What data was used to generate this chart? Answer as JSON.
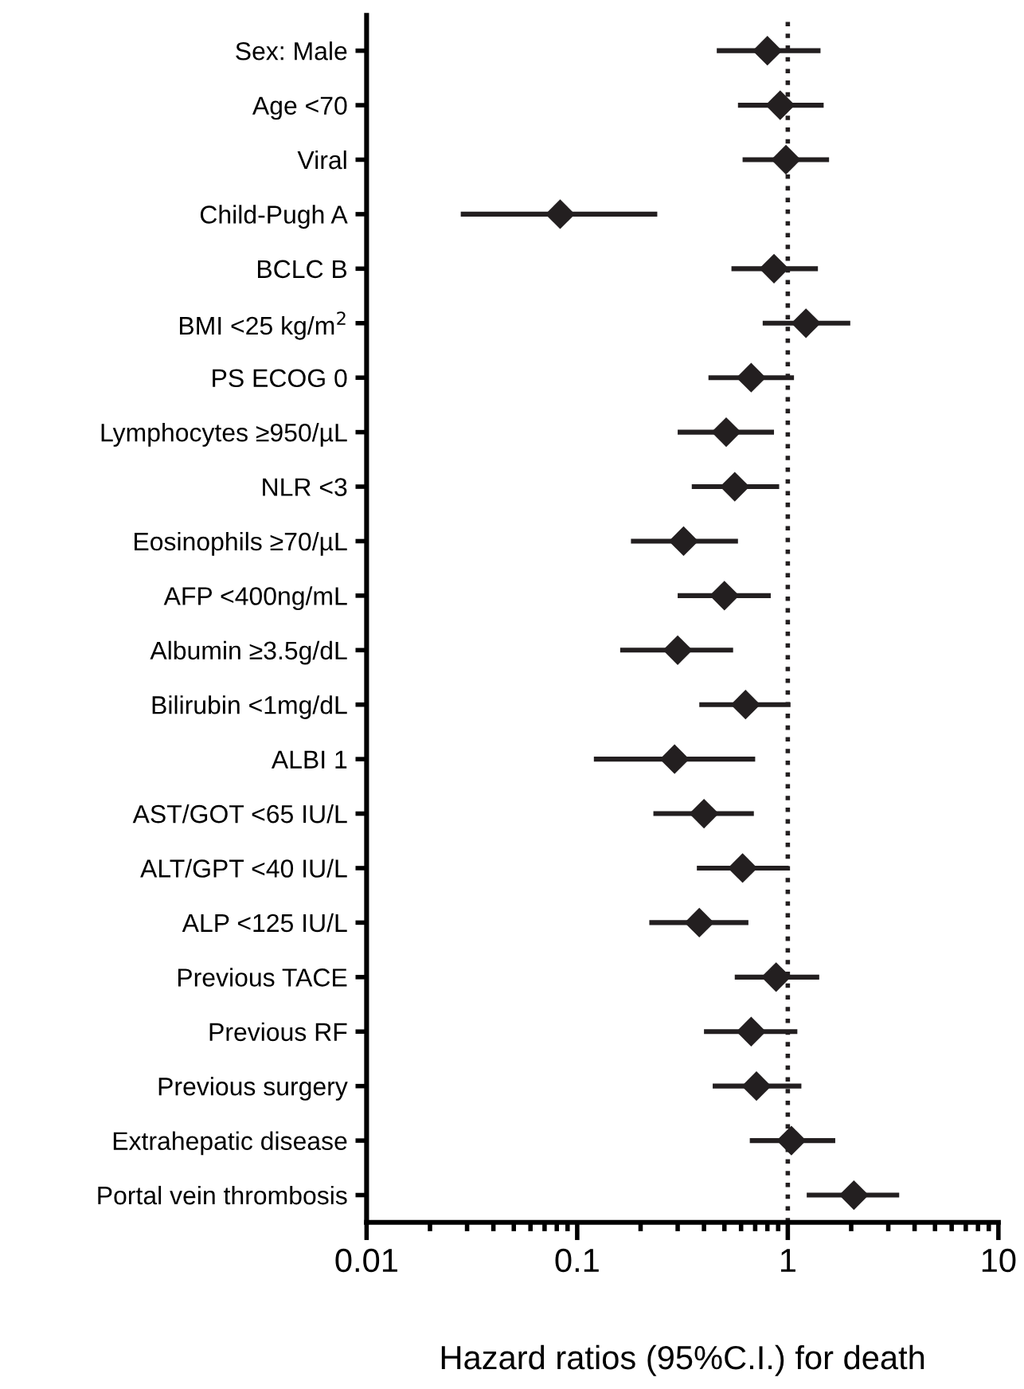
{
  "chart_data": {
    "type": "scatter",
    "orientation": "horizontal",
    "xlabel": "Hazard ratios (95%C.I.) for death",
    "categories": [
      "Sex: Male",
      "Age <70",
      "Viral",
      "Child-Pugh A",
      "BCLC B",
      "BMI <25 kg/m$^{2}$",
      "PS ECOG 0",
      "Lymphocytes ≥950/µL",
      "NLR <3",
      "Eosinophils ≥70/µL",
      "AFP <400ng/mL",
      "Albumin ≥3.5g/dL",
      "Bilirubin <1mg/dL",
      "ALBI 1",
      "AST/GOT <65 IU/L",
      "ALT/GPT <40 IU/L",
      "ALP <125 IU/L",
      "Previous TACE",
      "Previous RF",
      "Previous surgery",
      "Extrahepatic disease",
      "Portal vein thrombosis"
    ],
    "series": [
      {
        "color": "#231f20",
        "values": [
          0.8,
          0.92,
          0.98,
          0.083,
          0.86,
          1.22,
          0.67,
          0.51,
          0.56,
          0.32,
          0.5,
          0.3,
          0.63,
          0.29,
          0.4,
          0.61,
          0.38,
          0.88,
          0.67,
          0.71,
          1.04,
          2.06
        ],
        "errors": [
          [
            0.46,
            1.43
          ],
          [
            0.58,
            1.48
          ],
          [
            0.61,
            1.57
          ],
          [
            0.028,
            0.24
          ],
          [
            0.54,
            1.39
          ],
          [
            0.76,
            1.98
          ],
          [
            0.42,
            1.07
          ],
          [
            0.3,
            0.86
          ],
          [
            0.35,
            0.91
          ],
          [
            0.18,
            0.58
          ],
          [
            0.3,
            0.83
          ],
          [
            0.16,
            0.55
          ],
          [
            0.38,
            1.03
          ],
          [
            0.12,
            0.7
          ],
          [
            0.23,
            0.69
          ],
          [
            0.37,
            1.01
          ],
          [
            0.22,
            0.65
          ],
          [
            0.56,
            1.41
          ],
          [
            0.4,
            1.11
          ],
          [
            0.44,
            1.16
          ],
          [
            0.66,
            1.68
          ],
          [
            1.23,
            3.38
          ]
        ]
      }
    ],
    "log": "x",
    "xlim": [
      0.01,
      10
    ],
    "xticks": [
      0.01,
      0.1,
      1,
      10
    ],
    "marker": "diamond",
    "ref_lines": [
      {
        "axis": "x",
        "value": 1,
        "line_style": "dotted",
        "color": "#231f20"
      }
    ]
  }
}
